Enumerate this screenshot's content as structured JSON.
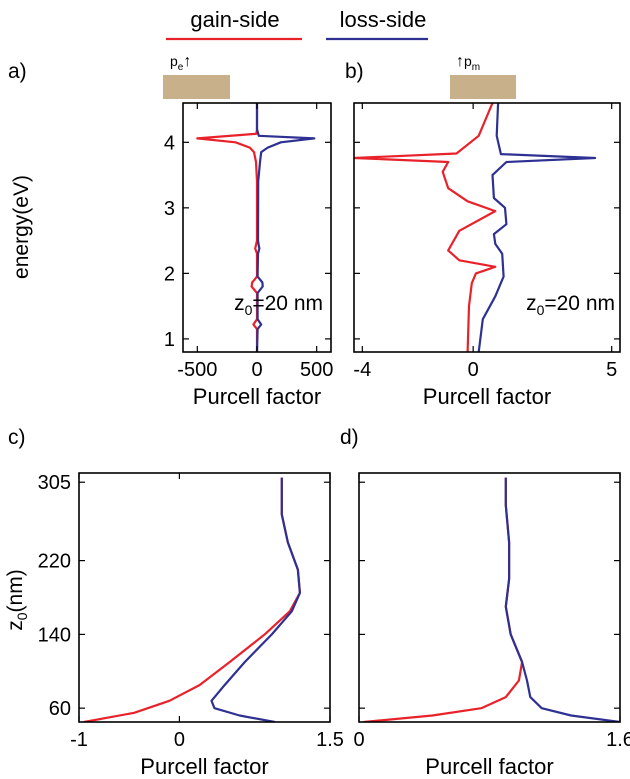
{
  "legend": {
    "gain_label": "gain-side",
    "loss_label": "loss-side",
    "gain_color": "#e8222a",
    "loss_color": "#2e3192"
  },
  "colors": {
    "slab": "#c8b08a",
    "axes": "#000000"
  },
  "chart_data": [
    {
      "id": "a",
      "panel_label": "a)",
      "type": "line",
      "orientation": "vertical-profile",
      "dipole_label": "p",
      "dipole_sub": "e",
      "dipole_arrow": "↑",
      "annotation": {
        "pre": "z",
        "sub": "0",
        "post": "=20 nm"
      },
      "xlabel": "Purcell factor",
      "ylabel": "energy(eV)",
      "xlim": [
        -620,
        620
      ],
      "ylim": [
        0.8,
        4.6
      ],
      "xticks": [
        -500,
        0,
        500
      ],
      "xtick_labels": [
        "-500",
        "0",
        "500"
      ],
      "yticks": [
        1,
        2,
        3,
        4
      ],
      "ytick_labels": [
        "1",
        "2",
        "3",
        "4"
      ],
      "series": [
        {
          "name": "gain-side",
          "color": "#e8222a",
          "points": [
            [
              0,
              0.8
            ],
            [
              0,
              1.15
            ],
            [
              -30,
              1.22
            ],
            [
              0,
              1.3
            ],
            [
              0,
              1.7
            ],
            [
              -45,
              1.8
            ],
            [
              -40,
              1.86
            ],
            [
              0,
              1.95
            ],
            [
              0,
              2.3
            ],
            [
              -15,
              2.38
            ],
            [
              -10,
              2.42
            ],
            [
              0,
              2.5
            ],
            [
              0,
              3.4
            ],
            [
              -8,
              3.7
            ],
            [
              -25,
              3.85
            ],
            [
              -60,
              3.92
            ],
            [
              -180,
              4.0
            ],
            [
              -500,
              4.06
            ],
            [
              -5,
              4.13
            ],
            [
              0,
              4.2
            ],
            [
              0,
              4.6
            ]
          ]
        },
        {
          "name": "loss-side",
          "color": "#2e3192",
          "points": [
            [
              0,
              0.8
            ],
            [
              5,
              1.15
            ],
            [
              35,
              1.22
            ],
            [
              5,
              1.3
            ],
            [
              5,
              1.7
            ],
            [
              48,
              1.8
            ],
            [
              45,
              1.86
            ],
            [
              5,
              1.95
            ],
            [
              8,
              2.3
            ],
            [
              20,
              2.38
            ],
            [
              15,
              2.42
            ],
            [
              8,
              2.5
            ],
            [
              10,
              3.4
            ],
            [
              25,
              3.7
            ],
            [
              35,
              3.85
            ],
            [
              90,
              3.92
            ],
            [
              200,
              4.0
            ],
            [
              480,
              4.06
            ],
            [
              15,
              4.1
            ],
            [
              0,
              4.2
            ],
            [
              0,
              4.6
            ]
          ]
        }
      ]
    },
    {
      "id": "b",
      "panel_label": "b)",
      "type": "line",
      "orientation": "vertical-profile",
      "dipole_label": "p",
      "dipole_sub": "m",
      "dipole_arrow": "↑",
      "annotation": {
        "pre": "z",
        "sub": "0",
        "post": "=20 nm"
      },
      "xlabel": "Purcell factor",
      "ylabel": "",
      "xlim": [
        -4.3,
        5.3
      ],
      "ylim": [
        0.8,
        4.6
      ],
      "xticks": [
        -4,
        0,
        5
      ],
      "xtick_labels": [
        "-4",
        "0",
        "5"
      ],
      "yticks": [
        1,
        2,
        3,
        4
      ],
      "ytick_labels": [],
      "series": [
        {
          "name": "gain-side",
          "color": "#e8222a",
          "points": [
            [
              -0.2,
              0.8
            ],
            [
              -0.15,
              1.5
            ],
            [
              -0.05,
              1.85
            ],
            [
              0.1,
              2.0
            ],
            [
              0.8,
              2.1
            ],
            [
              -0.5,
              2.2
            ],
            [
              -0.9,
              2.35
            ],
            [
              -0.5,
              2.65
            ],
            [
              0.8,
              2.95
            ],
            [
              -0.2,
              3.1
            ],
            [
              -0.9,
              3.3
            ],
            [
              -1.1,
              3.55
            ],
            [
              -0.9,
              3.7
            ],
            [
              -4.3,
              3.76
            ],
            [
              -0.6,
              3.83
            ],
            [
              0.2,
              4.1
            ],
            [
              0.7,
              4.6
            ]
          ]
        },
        {
          "name": "loss-side",
          "color": "#2e3192",
          "points": [
            [
              0.2,
              0.8
            ],
            [
              0.35,
              1.3
            ],
            [
              0.8,
              1.65
            ],
            [
              1.1,
              1.95
            ],
            [
              1.05,
              2.3
            ],
            [
              0.8,
              2.45
            ],
            [
              0.75,
              2.6
            ],
            [
              1.2,
              2.75
            ],
            [
              1.15,
              3.0
            ],
            [
              0.75,
              3.15
            ],
            [
              0.7,
              3.5
            ],
            [
              1.2,
              3.7
            ],
            [
              4.4,
              3.76
            ],
            [
              1.0,
              3.82
            ],
            [
              0.85,
              4.1
            ],
            [
              0.9,
              4.6
            ]
          ]
        }
      ]
    },
    {
      "id": "c",
      "panel_label": "c)",
      "type": "line",
      "orientation": "vertical-profile",
      "xlabel": "Purcell factor",
      "ylabel": {
        "pre": "z",
        "sub": "0",
        "post": "(nm)"
      },
      "xlim": [
        -1,
        1.5
      ],
      "ylim": [
        45,
        315
      ],
      "xticks": [
        -1,
        0,
        1.5
      ],
      "xtick_labels": [
        "-1",
        "0",
        "1.5"
      ],
      "yticks": [
        60,
        140,
        220,
        305
      ],
      "ytick_labels": [
        "60",
        "140",
        "220",
        "305"
      ],
      "series": [
        {
          "name": "gain-side",
          "color": "#e8222a",
          "points": [
            [
              -0.95,
              45
            ],
            [
              -0.45,
              55
            ],
            [
              -0.1,
              68
            ],
            [
              0.2,
              85
            ],
            [
              0.5,
              110
            ],
            [
              0.85,
              140
            ],
            [
              1.1,
              165
            ],
            [
              1.2,
              185
            ],
            [
              1.18,
              210
            ],
            [
              1.08,
              240
            ],
            [
              1.02,
              270
            ],
            [
              1.02,
              310
            ]
          ]
        },
        {
          "name": "loss-side",
          "color": "#2e3192",
          "points": [
            [
              0.95,
              45
            ],
            [
              0.6,
              52
            ],
            [
              0.35,
              60
            ],
            [
              0.32,
              68
            ],
            [
              0.45,
              85
            ],
            [
              0.65,
              110
            ],
            [
              0.92,
              140
            ],
            [
              1.12,
              165
            ],
            [
              1.2,
              185
            ],
            [
              1.18,
              210
            ],
            [
              1.08,
              240
            ],
            [
              1.02,
              270
            ],
            [
              1.02,
              310
            ]
          ]
        }
      ]
    },
    {
      "id": "d",
      "panel_label": "d)",
      "type": "line",
      "orientation": "vertical-profile",
      "xlabel": "Purcell factor",
      "ylabel": "",
      "xlim": [
        0,
        1.6
      ],
      "ylim": [
        45,
        315
      ],
      "xticks": [
        0,
        1.6
      ],
      "xtick_labels": [
        "0",
        "1.6"
      ],
      "yticks": [
        60,
        140,
        220,
        305
      ],
      "ytick_labels": [],
      "series": [
        {
          "name": "gain-side",
          "color": "#e8222a",
          "points": [
            [
              0.03,
              45
            ],
            [
              0.45,
              52
            ],
            [
              0.75,
              60
            ],
            [
              0.9,
              72
            ],
            [
              0.98,
              90
            ],
            [
              1.0,
              110
            ],
            [
              0.93,
              140
            ],
            [
              0.9,
              170
            ],
            [
              0.92,
              200
            ],
            [
              0.92,
              240
            ],
            [
              0.9,
              280
            ],
            [
              0.9,
              310
            ]
          ]
        },
        {
          "name": "loss-side",
          "color": "#2e3192",
          "points": [
            [
              1.6,
              45
            ],
            [
              1.3,
              52
            ],
            [
              1.12,
              60
            ],
            [
              1.05,
              72
            ],
            [
              1.03,
              90
            ],
            [
              1.0,
              110
            ],
            [
              0.93,
              140
            ],
            [
              0.9,
              170
            ],
            [
              0.92,
              200
            ],
            [
              0.92,
              240
            ],
            [
              0.9,
              280
            ],
            [
              0.9,
              310
            ]
          ]
        }
      ]
    }
  ]
}
